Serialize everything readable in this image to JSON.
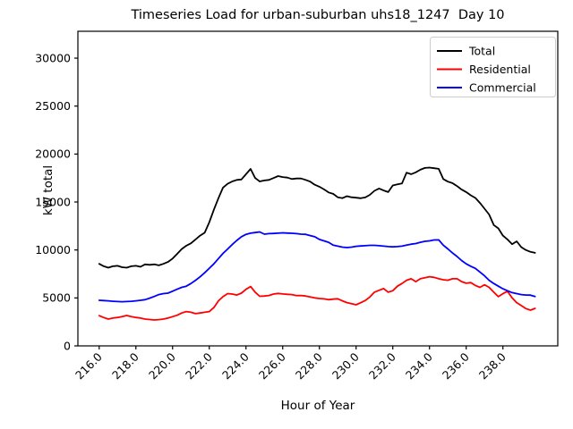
{
  "figure": {
    "title": "Timeseries Load for urban-suburban uhs18_1247  Day 10"
  },
  "chart_data": {
    "type": "line",
    "title": "Timeseries Load for urban-suburban uhs18_1247  Day 10",
    "xlabel": "Hour of Year",
    "ylabel": "kW total",
    "xlim": [
      214.84,
      240.99
    ],
    "ylim": [
      0,
      32800
    ],
    "xticks": [
      216.0,
      218.0,
      220.0,
      222.0,
      224.0,
      226.0,
      228.0,
      230.0,
      232.0,
      234.0,
      236.0,
      238.0
    ],
    "xtick_labels": [
      "216.0",
      "218.0",
      "220.0",
      "222.0",
      "224.0",
      "226.0",
      "228.0",
      "230.0",
      "232.0",
      "234.0",
      "236.0",
      "238.0"
    ],
    "yticks": [
      0,
      5000,
      10000,
      15000,
      20000,
      25000,
      30000
    ],
    "ytick_labels": [
      "0",
      "5000",
      "10000",
      "15000",
      "20000",
      "25000",
      "30000"
    ],
    "grid": false,
    "legend_position": "upper right",
    "x": [
      216.0,
      216.25,
      216.5,
      216.75,
      217.0,
      217.25,
      217.5,
      217.75,
      218.0,
      218.25,
      218.5,
      218.75,
      219.0,
      219.25,
      219.5,
      219.75,
      220.0,
      220.25,
      220.5,
      220.75,
      221.0,
      221.25,
      221.5,
      221.75,
      222.0,
      222.25,
      222.5,
      222.75,
      223.0,
      223.25,
      223.5,
      223.75,
      224.0,
      224.25,
      224.5,
      224.75,
      225.0,
      225.25,
      225.5,
      225.75,
      226.0,
      226.25,
      226.5,
      226.75,
      227.0,
      227.25,
      227.5,
      227.75,
      228.0,
      228.25,
      228.5,
      228.75,
      229.0,
      229.25,
      229.5,
      229.75,
      230.0,
      230.25,
      230.5,
      230.75,
      231.0,
      231.25,
      231.5,
      231.75,
      232.0,
      232.25,
      232.5,
      232.75,
      233.0,
      233.25,
      233.5,
      233.75,
      234.0,
      234.25,
      234.5,
      234.75,
      235.0,
      235.25,
      235.5,
      235.75,
      236.0,
      236.25,
      236.5,
      236.75,
      237.0,
      237.25,
      237.5,
      237.75,
      238.0,
      238.25,
      238.5,
      238.75,
      239.0,
      239.25,
      239.5,
      239.75
    ],
    "series": [
      {
        "name": "Total",
        "color": "#000000",
        "values": [
          8550,
          8300,
          8150,
          8300,
          8350,
          8200,
          8150,
          8300,
          8350,
          8250,
          8500,
          8450,
          8500,
          8400,
          8550,
          8750,
          9100,
          9600,
          10100,
          10450,
          10700,
          11100,
          11500,
          11800,
          12900,
          14200,
          15400,
          16500,
          16900,
          17150,
          17300,
          17350,
          17900,
          18450,
          17500,
          17150,
          17250,
          17300,
          17500,
          17700,
          17600,
          17550,
          17400,
          17450,
          17450,
          17300,
          17130,
          16800,
          16600,
          16320,
          16000,
          15850,
          15500,
          15400,
          15610,
          15500,
          15450,
          15390,
          15480,
          15750,
          16170,
          16410,
          16200,
          16040,
          16730,
          16850,
          16940,
          18060,
          17900,
          18100,
          18370,
          18550,
          18590,
          18520,
          18460,
          17400,
          17130,
          16970,
          16660,
          16300,
          16040,
          15700,
          15420,
          14900,
          14300,
          13700,
          12600,
          12250,
          11500,
          11100,
          10600,
          10900,
          10300,
          10000,
          9800,
          9700
        ]
      },
      {
        "name": "Residential",
        "color": "#ff0000",
        "values": [
          3150,
          2950,
          2800,
          2900,
          2960,
          3050,
          3170,
          3050,
          2960,
          2900,
          2800,
          2750,
          2700,
          2740,
          2800,
          2900,
          3050,
          3200,
          3430,
          3580,
          3500,
          3360,
          3430,
          3500,
          3580,
          4000,
          4700,
          5130,
          5450,
          5400,
          5300,
          5500,
          5900,
          6190,
          5600,
          5170,
          5200,
          5260,
          5400,
          5470,
          5410,
          5380,
          5350,
          5250,
          5260,
          5200,
          5100,
          5000,
          4940,
          4900,
          4820,
          4870,
          4910,
          4700,
          4510,
          4400,
          4290,
          4500,
          4730,
          5100,
          5600,
          5800,
          5970,
          5600,
          5750,
          6220,
          6500,
          6840,
          7000,
          6700,
          7000,
          7100,
          7215,
          7150,
          7000,
          6900,
          6840,
          7000,
          7000,
          6700,
          6530,
          6600,
          6300,
          6100,
          6370,
          6100,
          5600,
          5130,
          5440,
          5690,
          5000,
          4510,
          4200,
          3890,
          3730,
          3900
        ]
      },
      {
        "name": "Commercial",
        "color": "#0000ff",
        "values": [
          4750,
          4720,
          4700,
          4650,
          4620,
          4600,
          4620,
          4650,
          4700,
          4750,
          4820,
          4980,
          5150,
          5350,
          5450,
          5500,
          5700,
          5910,
          6100,
          6220,
          6500,
          6840,
          7200,
          7620,
          8100,
          8550,
          9100,
          9640,
          10100,
          10570,
          11000,
          11380,
          11630,
          11750,
          11820,
          11880,
          11650,
          11700,
          11720,
          11750,
          11790,
          11760,
          11740,
          11700,
          11650,
          11630,
          11500,
          11380,
          11100,
          10950,
          10800,
          10500,
          10400,
          10300,
          10250,
          10300,
          10380,
          10420,
          10450,
          10480,
          10480,
          10450,
          10400,
          10350,
          10320,
          10350,
          10400,
          10500,
          10600,
          10670,
          10800,
          10900,
          10950,
          11040,
          11050,
          10500,
          10110,
          9700,
          9320,
          8900,
          8550,
          8300,
          8080,
          7700,
          7310,
          6840,
          6500,
          6220,
          5950,
          5750,
          5550,
          5450,
          5350,
          5300,
          5290,
          5150
        ]
      }
    ]
  }
}
